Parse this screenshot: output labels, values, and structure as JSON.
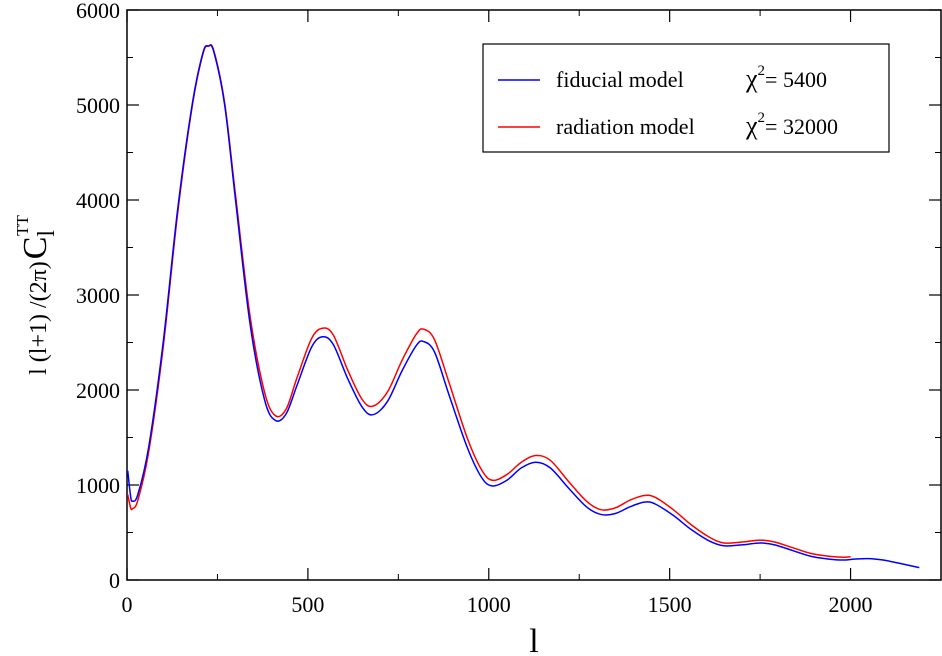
{
  "chart_data": {
    "type": "line",
    "xlabel": "l",
    "ylabel": {
      "prefix": "l (l+1) /(2π)",
      "main": "C",
      "subscript": "l",
      "superscript": "TT"
    },
    "xlim": [
      0,
      2250
    ],
    "ylim": [
      0,
      6000
    ],
    "x_ticks": [
      0,
      500,
      1000,
      1500,
      2000
    ],
    "y_ticks": [
      0,
      1000,
      2000,
      3000,
      4000,
      5000,
      6000
    ],
    "grid": false,
    "legend_position": "top-right",
    "series": [
      {
        "name": "fiducial model",
        "chi2_label": "χ",
        "chi2_exp": "2",
        "chi2_value": "= 5400",
        "color": "#0000ff",
        "points": [
          [
            2,
            1150
          ],
          [
            10,
            880
          ],
          [
            15,
            830
          ],
          [
            30,
            900
          ],
          [
            60,
            1400
          ],
          [
            100,
            2500
          ],
          [
            140,
            3900
          ],
          [
            180,
            5000
          ],
          [
            210,
            5550
          ],
          [
            225,
            5620
          ],
          [
            240,
            5560
          ],
          [
            270,
            5000
          ],
          [
            300,
            4000
          ],
          [
            340,
            2700
          ],
          [
            380,
            1900
          ],
          [
            410,
            1680
          ],
          [
            440,
            1750
          ],
          [
            470,
            2050
          ],
          [
            510,
            2450
          ],
          [
            540,
            2560
          ],
          [
            570,
            2480
          ],
          [
            610,
            2120
          ],
          [
            650,
            1820
          ],
          [
            680,
            1740
          ],
          [
            720,
            1880
          ],
          [
            760,
            2200
          ],
          [
            800,
            2470
          ],
          [
            820,
            2510
          ],
          [
            850,
            2400
          ],
          [
            890,
            1950
          ],
          [
            940,
            1400
          ],
          [
            980,
            1080
          ],
          [
            1010,
            990
          ],
          [
            1050,
            1050
          ],
          [
            1090,
            1180
          ],
          [
            1130,
            1240
          ],
          [
            1170,
            1180
          ],
          [
            1220,
            970
          ],
          [
            1270,
            770
          ],
          [
            1310,
            690
          ],
          [
            1350,
            700
          ],
          [
            1390,
            770
          ],
          [
            1430,
            820
          ],
          [
            1460,
            800
          ],
          [
            1510,
            680
          ],
          [
            1560,
            530
          ],
          [
            1610,
            410
          ],
          [
            1650,
            360
          ],
          [
            1700,
            370
          ],
          [
            1750,
            390
          ],
          [
            1790,
            370
          ],
          [
            1840,
            310
          ],
          [
            1890,
            250
          ],
          [
            1940,
            220
          ],
          [
            1980,
            210
          ],
          [
            2010,
            220
          ],
          [
            2050,
            225
          ],
          [
            2090,
            210
          ],
          [
            2130,
            180
          ],
          [
            2190,
            130
          ]
        ]
      },
      {
        "name": "radiation model",
        "chi2_label": "χ",
        "chi2_exp": "2",
        "chi2_value": "= 32000",
        "color": "#ff0000",
        "points": [
          [
            2,
            900
          ],
          [
            10,
            760
          ],
          [
            15,
            750
          ],
          [
            30,
            840
          ],
          [
            60,
            1350
          ],
          [
            100,
            2450
          ],
          [
            140,
            3860
          ],
          [
            180,
            4980
          ],
          [
            210,
            5540
          ],
          [
            225,
            5620
          ],
          [
            240,
            5570
          ],
          [
            270,
            5020
          ],
          [
            300,
            4050
          ],
          [
            340,
            2780
          ],
          [
            380,
            1980
          ],
          [
            410,
            1730
          ],
          [
            440,
            1800
          ],
          [
            470,
            2130
          ],
          [
            510,
            2540
          ],
          [
            540,
            2650
          ],
          [
            570,
            2580
          ],
          [
            610,
            2210
          ],
          [
            650,
            1900
          ],
          [
            680,
            1830
          ],
          [
            720,
            1980
          ],
          [
            760,
            2310
          ],
          [
            800,
            2590
          ],
          [
            820,
            2640
          ],
          [
            850,
            2530
          ],
          [
            890,
            2080
          ],
          [
            940,
            1500
          ],
          [
            980,
            1160
          ],
          [
            1010,
            1050
          ],
          [
            1050,
            1110
          ],
          [
            1090,
            1240
          ],
          [
            1130,
            1310
          ],
          [
            1170,
            1260
          ],
          [
            1220,
            1040
          ],
          [
            1270,
            830
          ],
          [
            1310,
            740
          ],
          [
            1350,
            760
          ],
          [
            1390,
            840
          ],
          [
            1430,
            890
          ],
          [
            1460,
            870
          ],
          [
            1510,
            740
          ],
          [
            1560,
            580
          ],
          [
            1610,
            450
          ],
          [
            1650,
            390
          ],
          [
            1700,
            400
          ],
          [
            1750,
            420
          ],
          [
            1790,
            400
          ],
          [
            1840,
            340
          ],
          [
            1890,
            280
          ],
          [
            1940,
            250
          ],
          [
            1980,
            240
          ],
          [
            2000,
            245
          ]
        ]
      }
    ]
  }
}
